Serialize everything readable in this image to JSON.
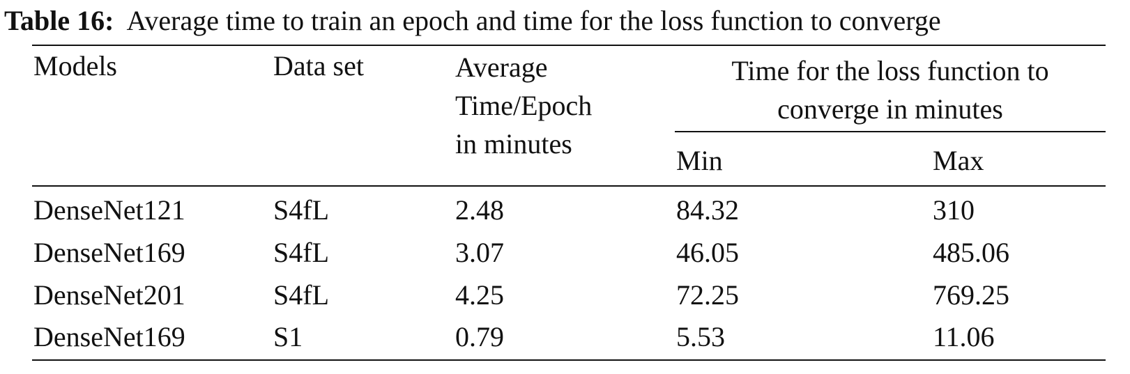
{
  "caption": {
    "label": "Table 16:",
    "text": "Average time to train an epoch and time for the loss function to converge"
  },
  "table": {
    "headers": {
      "models": "Models",
      "dataset": "Data set",
      "avg_time": [
        "Average",
        "Time/Epoch",
        "in minutes"
      ],
      "converge": [
        "Time for the loss function to",
        "converge in minutes"
      ],
      "min": "Min",
      "max": "Max"
    },
    "rows": [
      {
        "model": "DenseNet121",
        "dataset": "S4fL",
        "avg": "2.48",
        "min": "84.32",
        "max": "310"
      },
      {
        "model": "DenseNet169",
        "dataset": "S4fL",
        "avg": "3.07",
        "min": "46.05",
        "max": "485.06"
      },
      {
        "model": "DenseNet201",
        "dataset": "S4fL",
        "avg": "4.25",
        "min": "72.25",
        "max": "769.25"
      },
      {
        "model": "DenseNet169",
        "dataset": "S1",
        "avg": "0.79",
        "min": "5.53",
        "max": "11.06"
      }
    ]
  }
}
